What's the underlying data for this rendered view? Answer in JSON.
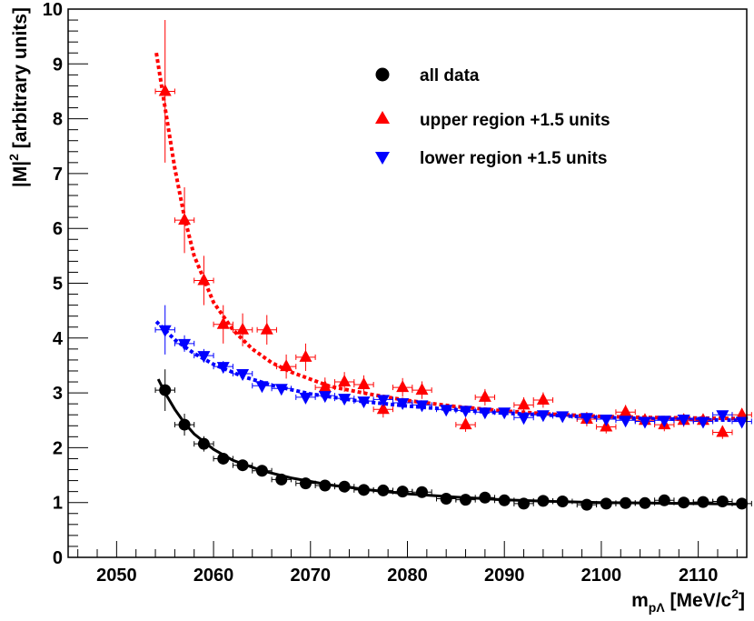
{
  "chart_data": {
    "type": "scatter",
    "title": "",
    "xlabel": "m_{pΛ} [MeV/c²]",
    "xlabel_parts": {
      "main": "m",
      "sub": "pΛ",
      "units": "[MeV/c",
      "units_sup": "2",
      "units_close": "]"
    },
    "ylabel": "|M|² [arbitrary units]",
    "ylabel_parts": {
      "main": "|M|",
      "sup": "2",
      "rest": " [arbitrary units]"
    },
    "xlim": [
      2045,
      2115
    ],
    "ylim": [
      0,
      10
    ],
    "x_ticks": [
      "2050",
      "2060",
      "2070",
      "2080",
      "2090",
      "2100",
      "2110"
    ],
    "y_ticks": [
      "0",
      "1",
      "2",
      "3",
      "4",
      "5",
      "6",
      "7",
      "8",
      "9",
      "10"
    ],
    "x_tick_values": [
      2050,
      2060,
      2070,
      2080,
      2090,
      2100,
      2110
    ],
    "y_tick_values": [
      0,
      1,
      2,
      3,
      4,
      5,
      6,
      7,
      8,
      9,
      10
    ],
    "legend_position": "top-right",
    "bin_half_width": 1.0,
    "series": [
      {
        "name": "all data",
        "marker": "circle",
        "color": "#000000",
        "x": [
          2055,
          2057,
          2059,
          2061,
          2063,
          2065,
          2067,
          2069.5,
          2071.5,
          2073.5,
          2075.5,
          2077.5,
          2079.5,
          2081.5,
          2084,
          2086,
          2088,
          2090,
          2092,
          2094,
          2096,
          2098.5,
          2100.5,
          2102.5,
          2104.5,
          2106.5,
          2108.5,
          2110.5,
          2112.5,
          2114.5
        ],
        "y": [
          3.05,
          2.42,
          2.07,
          1.8,
          1.68,
          1.58,
          1.42,
          1.35,
          1.31,
          1.29,
          1.23,
          1.22,
          1.2,
          1.19,
          1.07,
          1.05,
          1.09,
          1.04,
          0.98,
          1.03,
          1.02,
          0.96,
          0.98,
          0.99,
          0.99,
          1.04,
          1.0,
          1.01,
          1.02,
          0.98
        ],
        "yerr": [
          0.38,
          0.2,
          0.14,
          0.1,
          0.08,
          0.07,
          0.06,
          0.05,
          0.05,
          0.05,
          0.04,
          0.04,
          0.04,
          0.04,
          0.04,
          0.04,
          0.04,
          0.04,
          0.04,
          0.04,
          0.04,
          0.04,
          0.04,
          0.04,
          0.04,
          0.04,
          0.04,
          0.04,
          0.04,
          0.04
        ],
        "fit": {
          "style": "solid",
          "x": [
            2054.3,
            2055,
            2056,
            2057,
            2058,
            2060,
            2062,
            2065,
            2068,
            2072,
            2076,
            2080,
            2085,
            2090,
            2095,
            2100,
            2105,
            2110,
            2115
          ],
          "y": [
            3.25,
            3.0,
            2.7,
            2.45,
            2.25,
            1.97,
            1.77,
            1.58,
            1.45,
            1.32,
            1.23,
            1.16,
            1.1,
            1.05,
            1.02,
            1.0,
            0.99,
            0.98,
            0.97
          ]
        }
      },
      {
        "name": "upper region +1.5 units",
        "marker": "triangle-up",
        "color": "#ff0000",
        "x": [
          2055,
          2057,
          2059,
          2061,
          2063,
          2065.5,
          2067.5,
          2069.5,
          2071.5,
          2073.5,
          2075.5,
          2077.5,
          2079.5,
          2081.5,
          2086,
          2088,
          2092,
          2094,
          2098.5,
          2100.5,
          2102.5,
          2104.5,
          2106.5,
          2108.5,
          2110.5,
          2112.5,
          2114.5
        ],
        "y": [
          8.5,
          6.15,
          5.05,
          4.25,
          4.15,
          4.15,
          3.48,
          3.65,
          3.1,
          3.2,
          3.15,
          2.7,
          3.1,
          3.05,
          2.42,
          2.92,
          2.78,
          2.87,
          2.52,
          2.38,
          2.65,
          2.5,
          2.42,
          2.5,
          2.5,
          2.28,
          2.6
        ],
        "yerr": [
          1.3,
          0.6,
          0.45,
          0.35,
          0.3,
          0.27,
          0.22,
          0.25,
          0.18,
          0.18,
          0.17,
          0.15,
          0.17,
          0.16,
          0.13,
          0.15,
          0.14,
          0.14,
          0.13,
          0.12,
          0.13,
          0.12,
          0.12,
          0.12,
          0.12,
          0.12,
          0.12
        ],
        "fit": {
          "style": "dotted",
          "x": [
            2054.1,
            2055,
            2056,
            2057,
            2058,
            2060,
            2062,
            2064,
            2066,
            2068,
            2072,
            2076,
            2080,
            2085,
            2090,
            2095,
            2100,
            2105,
            2110,
            2115
          ],
          "y": [
            9.2,
            8.2,
            7.1,
            6.2,
            5.5,
            4.65,
            4.15,
            3.8,
            3.55,
            3.38,
            3.12,
            2.98,
            2.86,
            2.75,
            2.67,
            2.61,
            2.57,
            2.55,
            2.54,
            2.53
          ]
        }
      },
      {
        "name": "lower region +1.5 units",
        "marker": "triangle-down",
        "color": "#0000ff",
        "x": [
          2055,
          2057,
          2059,
          2061,
          2063,
          2065,
          2067,
          2069.5,
          2071.5,
          2073.5,
          2075.5,
          2077.5,
          2079.5,
          2081.5,
          2084,
          2086,
          2088,
          2090,
          2092,
          2094,
          2096,
          2098.5,
          2100.5,
          2102.5,
          2104.5,
          2106.5,
          2108.5,
          2110.5,
          2112.5,
          2114.5
        ],
        "y": [
          4.15,
          3.9,
          3.68,
          3.48,
          3.35,
          3.13,
          3.08,
          2.92,
          2.95,
          2.9,
          2.85,
          2.88,
          2.82,
          2.78,
          2.7,
          2.68,
          2.65,
          2.65,
          2.55,
          2.6,
          2.58,
          2.55,
          2.52,
          2.5,
          2.48,
          2.5,
          2.52,
          2.48,
          2.6,
          2.48
        ],
        "yerr": [
          0.45,
          0.15,
          0.12,
          0.1,
          0.08,
          0.07,
          0.06,
          0.06,
          0.05,
          0.05,
          0.05,
          0.05,
          0.05,
          0.05,
          0.05,
          0.05,
          0.05,
          0.05,
          0.05,
          0.05,
          0.05,
          0.05,
          0.05,
          0.05,
          0.05,
          0.05,
          0.05,
          0.05,
          0.05,
          0.05
        ],
        "fit": {
          "style": "dotted",
          "x": [
            2054.1,
            2056,
            2058,
            2060,
            2063,
            2066,
            2070,
            2075,
            2080,
            2085,
            2090,
            2095,
            2100,
            2105,
            2110,
            2115
          ],
          "y": [
            4.3,
            3.97,
            3.72,
            3.52,
            3.3,
            3.14,
            2.98,
            2.85,
            2.76,
            2.69,
            2.63,
            2.59,
            2.55,
            2.53,
            2.51,
            2.5
          ]
        }
      }
    ]
  }
}
